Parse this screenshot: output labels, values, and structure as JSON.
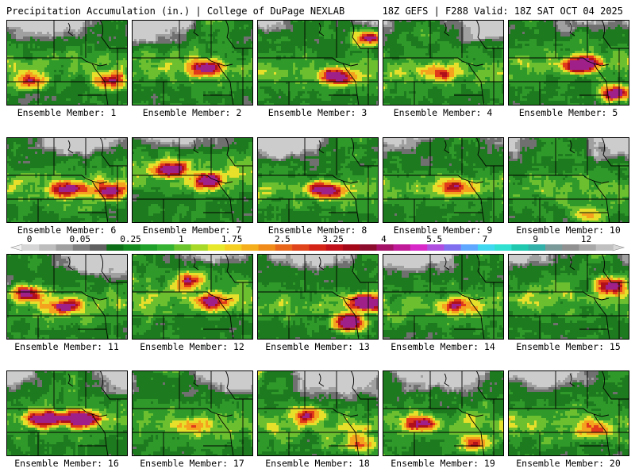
{
  "header": {
    "title": "Precipitation Accumulation (in.) | College of DuPage NEXLAB",
    "run_info": "18Z GEFS | F288 Valid: 18Z SAT OCT 04 2025"
  },
  "panels": [
    {
      "label": "Ensemble Member: 1"
    },
    {
      "label": "Ensemble Member: 2"
    },
    {
      "label": "Ensemble Member: 3"
    },
    {
      "label": "Ensemble Member: 4"
    },
    {
      "label": "Ensemble Member: 5"
    },
    {
      "label": "Ensemble Member: 6"
    },
    {
      "label": "Ensemble Member: 7"
    },
    {
      "label": "Ensemble Member: 8"
    },
    {
      "label": "Ensemble Member: 9"
    },
    {
      "label": "Ensemble Member: 10"
    },
    {
      "label": "Ensemble Member: 11"
    },
    {
      "label": "Ensemble Member: 12"
    },
    {
      "label": "Ensemble Member: 13"
    },
    {
      "label": "Ensemble Member: 14"
    },
    {
      "label": "Ensemble Member: 15"
    },
    {
      "label": "Ensemble Member: 16"
    },
    {
      "label": "Ensemble Member: 17"
    },
    {
      "label": "Ensemble Member: 18"
    },
    {
      "label": "Ensemble Member: 19"
    },
    {
      "label": "Ensemble Member: 20"
    }
  ],
  "colorbar": {
    "tick_labels": [
      "0",
      "0.05",
      "0.25",
      "1",
      "1.75",
      "2.5",
      "3.25",
      "4",
      "5.5",
      "7",
      "9",
      "12"
    ],
    "colors": [
      "#d6d6d6",
      "#bdbdbd",
      "#a0a0a0",
      "#7f7f7f",
      "#606060",
      "#0c6e16",
      "#138a1e",
      "#1fa02a",
      "#35b232",
      "#6cc42c",
      "#a8d828",
      "#e8e82a",
      "#f5cf22",
      "#f5ae1c",
      "#f08a18",
      "#e8661a",
      "#e0441a",
      "#d42418",
      "#c2101a",
      "#a40818",
      "#8c0c2e",
      "#a41268",
      "#c01a98",
      "#d828c8",
      "#b050e0",
      "#8070f0",
      "#60a8ff",
      "#40d8f0",
      "#30e0d0",
      "#20c8b0",
      "#30b0a8",
      "#7a9a9a",
      "#909090",
      "#a8a8a8",
      "#c0c0c0"
    ]
  },
  "colors": {
    "gray_light": "#cccccc",
    "gray_mid": "#a0a0a0",
    "gray_dark": "#707070",
    "green_dark": "#1e7a1e",
    "green_mid": "#2f9a2a",
    "green_light": "#6cc030",
    "yellow": "#e6e02a",
    "orange": "#f5a21e",
    "red": "#e03a1a",
    "dark_red": "#b0101a",
    "magenta": "#a0208a",
    "border": "#000000"
  }
}
